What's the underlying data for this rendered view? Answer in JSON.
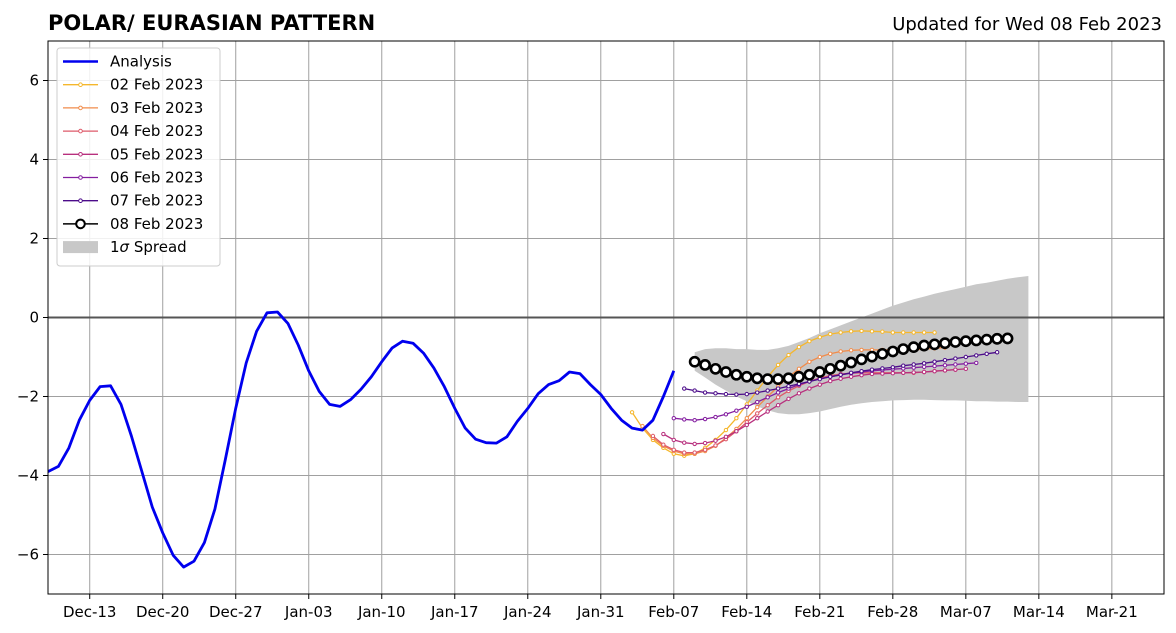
{
  "chart_data": {
    "type": "line",
    "title": "POLAR/ EURASIAN  PATTERN",
    "subtitle": "Updated for Wed 08 Feb 2023",
    "xlim": [
      "2022-12-09",
      "2023-03-26"
    ],
    "ylim": [
      -7,
      7
    ],
    "x_ticks": [
      {
        "date": "2022-12-13",
        "label": "Dec-13"
      },
      {
        "date": "2022-12-20",
        "label": "Dec-20"
      },
      {
        "date": "2022-12-27",
        "label": "Dec-27"
      },
      {
        "date": "2023-01-03",
        "label": "Jan-03"
      },
      {
        "date": "2023-01-10",
        "label": "Jan-10"
      },
      {
        "date": "2023-01-17",
        "label": "Jan-17"
      },
      {
        "date": "2023-01-24",
        "label": "Jan-24"
      },
      {
        "date": "2023-01-31",
        "label": "Jan-31"
      },
      {
        "date": "2023-02-07",
        "label": "Feb-07"
      },
      {
        "date": "2023-02-14",
        "label": "Feb-14"
      },
      {
        "date": "2023-02-21",
        "label": "Feb-21"
      },
      {
        "date": "2023-02-28",
        "label": "Feb-28"
      },
      {
        "date": "2023-03-07",
        "label": "Mar-07"
      },
      {
        "date": "2023-03-14",
        "label": "Mar-14"
      },
      {
        "date": "2023-03-21",
        "label": "Mar-21"
      }
    ],
    "y_ticks": [
      {
        "value": 6,
        "label": "6"
      },
      {
        "value": 4,
        "label": "4"
      },
      {
        "value": 2,
        "label": "2"
      },
      {
        "value": 0,
        "label": "0"
      },
      {
        "value": -2,
        "label": "−2"
      },
      {
        "value": -4,
        "label": "−4"
      },
      {
        "value": -6,
        "label": "−6"
      }
    ],
    "grid": true,
    "legend_position": "top-left",
    "zero_line": true,
    "analysis": {
      "name": "Analysis",
      "color": "#0000ee",
      "start": "2022-12-09",
      "values": [
        -3.9,
        -3.77,
        -3.3,
        -2.6,
        -2.1,
        -1.75,
        -1.73,
        -2.2,
        -3.0,
        -3.9,
        -4.8,
        -5.45,
        -6.02,
        -6.32,
        -6.17,
        -5.7,
        -4.85,
        -3.6,
        -2.3,
        -1.15,
        -0.35,
        0.12,
        0.14,
        -0.15,
        -0.7,
        -1.35,
        -1.87,
        -2.2,
        -2.25,
        -2.08,
        -1.82,
        -1.5,
        -1.12,
        -0.77,
        -0.6,
        -0.65,
        -0.9,
        -1.28,
        -1.75,
        -2.3,
        -2.8,
        -3.08,
        -3.17,
        -3.18,
        -3.02,
        -2.63,
        -2.3,
        -1.93,
        -1.7,
        -1.6,
        -1.38,
        -1.42,
        -1.7,
        -1.95,
        -2.3,
        -2.6,
        -2.8,
        -2.85,
        -2.6,
        -2.0,
        -1.35
      ]
    },
    "spread": {
      "name": "1σ Spread",
      "color": "#c8c8c8",
      "start": "2023-02-09",
      "upper": [
        -0.88,
        -0.8,
        -0.78,
        -0.78,
        -0.8,
        -0.8,
        -0.82,
        -0.82,
        -0.78,
        -0.72,
        -0.62,
        -0.52,
        -0.4,
        -0.3,
        -0.2,
        -0.1,
        0.0,
        0.1,
        0.2,
        0.3,
        0.38,
        0.46,
        0.53,
        0.6,
        0.66,
        0.72,
        0.78,
        0.84,
        0.88,
        0.93,
        0.98,
        1.02,
        1.05
      ],
      "lower": [
        -1.35,
        -1.52,
        -1.7,
        -1.85,
        -2.0,
        -2.12,
        -2.25,
        -2.35,
        -2.42,
        -2.45,
        -2.45,
        -2.42,
        -2.38,
        -2.32,
        -2.26,
        -2.21,
        -2.17,
        -2.14,
        -2.12,
        -2.1,
        -2.09,
        -2.08,
        -2.08,
        -2.09,
        -2.1,
        -2.1,
        -2.11,
        -2.12,
        -2.12,
        -2.13,
        -2.13,
        -2.14,
        -2.14
      ]
    },
    "series": [
      {
        "name": "02 Feb 2023",
        "color": "#f5b72c",
        "start": "2023-02-03",
        "values": [
          -2.4,
          -2.8,
          -3.1,
          -3.3,
          -3.45,
          -3.5,
          -3.45,
          -3.3,
          -3.1,
          -2.85,
          -2.55,
          -2.2,
          -1.85,
          -1.5,
          -1.2,
          -0.95,
          -0.75,
          -0.6,
          -0.5,
          -0.42,
          -0.38,
          -0.35,
          -0.34,
          -0.35,
          -0.36,
          -0.38,
          -0.38,
          -0.38,
          -0.38,
          -0.38
        ]
      },
      {
        "name": "03 Feb 2023",
        "color": "#f18c4b",
        "start": "2023-02-04",
        "values": [
          -2.75,
          -3.05,
          -3.25,
          -3.38,
          -3.45,
          -3.45,
          -3.38,
          -3.25,
          -3.05,
          -2.82,
          -2.55,
          -2.27,
          -2.0,
          -1.75,
          -1.5,
          -1.3,
          -1.12,
          -1.0,
          -0.92,
          -0.86,
          -0.83,
          -0.82,
          -0.82,
          -0.82,
          -0.82,
          -0.82,
          -0.82,
          -0.8,
          -0.78,
          -0.76
        ]
      },
      {
        "name": "04 Feb 2023",
        "color": "#de5a6a",
        "start": "2023-02-05",
        "values": [
          -3.0,
          -3.22,
          -3.35,
          -3.42,
          -3.42,
          -3.35,
          -3.24,
          -3.08,
          -2.88,
          -2.65,
          -2.43,
          -2.22,
          -2.02,
          -1.86,
          -1.73,
          -1.62,
          -1.53,
          -1.47,
          -1.43,
          -1.41,
          -1.4,
          -1.4,
          -1.4,
          -1.4,
          -1.4,
          -1.4,
          -1.38,
          -1.36,
          -1.34,
          -1.32
        ]
      },
      {
        "name": "05 Feb 2023",
        "color": "#b8307e",
        "start": "2023-02-06",
        "values": [
          -2.95,
          -3.1,
          -3.17,
          -3.2,
          -3.18,
          -3.12,
          -3.02,
          -2.88,
          -2.72,
          -2.55,
          -2.38,
          -2.22,
          -2.06,
          -1.92,
          -1.8,
          -1.7,
          -1.61,
          -1.55,
          -1.5,
          -1.46,
          -1.43,
          -1.42,
          -1.41,
          -1.4,
          -1.39,
          -1.38,
          -1.36,
          -1.34,
          -1.32,
          -1.3
        ]
      },
      {
        "name": "06 Feb 2023",
        "color": "#841ea0",
        "start": "2023-02-07",
        "values": [
          -2.55,
          -2.58,
          -2.6,
          -2.57,
          -2.52,
          -2.45,
          -2.36,
          -2.26,
          -2.14,
          -2.02,
          -1.9,
          -1.8,
          -1.7,
          -1.62,
          -1.55,
          -1.5,
          -1.45,
          -1.41,
          -1.38,
          -1.35,
          -1.33,
          -1.31,
          -1.29,
          -1.27,
          -1.25,
          -1.23,
          -1.21,
          -1.19,
          -1.17,
          -1.15
        ]
      },
      {
        "name": "07 Feb 2023",
        "color": "#4c0c8a",
        "start": "2023-02-08",
        "values": [
          -1.8,
          -1.85,
          -1.9,
          -1.92,
          -1.94,
          -1.95,
          -1.94,
          -1.9,
          -1.85,
          -1.8,
          -1.74,
          -1.68,
          -1.62,
          -1.56,
          -1.5,
          -1.45,
          -1.4,
          -1.36,
          -1.32,
          -1.29,
          -1.26,
          -1.22,
          -1.19,
          -1.16,
          -1.12,
          -1.08,
          -1.04,
          -1.0,
          -0.96,
          -0.92,
          -0.88
        ]
      },
      {
        "name": "08 Feb 2023",
        "color": "#000000",
        "start": "2023-02-09",
        "marker": "open-circle",
        "values": [
          -1.12,
          -1.2,
          -1.3,
          -1.38,
          -1.45,
          -1.5,
          -1.54,
          -1.56,
          -1.56,
          -1.54,
          -1.5,
          -1.45,
          -1.38,
          -1.3,
          -1.22,
          -1.14,
          -1.06,
          -0.99,
          -0.92,
          -0.86,
          -0.8,
          -0.75,
          -0.71,
          -0.68,
          -0.65,
          -0.62,
          -0.6,
          -0.58,
          -0.56,
          -0.54,
          -0.53
        ]
      }
    ],
    "analysis_legend": "Analysis",
    "spread_legend": "1σ Spread"
  }
}
